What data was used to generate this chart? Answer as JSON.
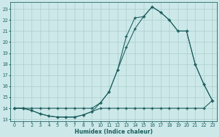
{
  "xlabel": "Humidex (Indice chaleur)",
  "xlim": [
    -0.5,
    23.5
  ],
  "ylim": [
    12.8,
    23.6
  ],
  "yticks": [
    13,
    14,
    15,
    16,
    17,
    18,
    19,
    20,
    21,
    22,
    23
  ],
  "xticks": [
    0,
    1,
    2,
    3,
    4,
    5,
    6,
    7,
    8,
    9,
    10,
    11,
    12,
    13,
    14,
    15,
    16,
    17,
    18,
    19,
    20,
    21,
    22,
    23
  ],
  "bg_color": "#cce8e8",
  "grid_color": "#aacccc",
  "line_color": "#1a5c5c",
  "line1_x": [
    0,
    1,
    2,
    3,
    4,
    5,
    6,
    7,
    8,
    9,
    10,
    11,
    12,
    13,
    14,
    15,
    16,
    17,
    18,
    19,
    20,
    21,
    22,
    23
  ],
  "line1_y": [
    14.0,
    14.0,
    13.8,
    13.5,
    13.3,
    13.2,
    13.2,
    13.2,
    13.4,
    13.7,
    14.0,
    14.0,
    14.0,
    14.0,
    14.0,
    14.0,
    14.0,
    14.0,
    14.0,
    14.0,
    14.0,
    14.0,
    14.0,
    14.7
  ],
  "line2_x": [
    0,
    1,
    2,
    3,
    4,
    5,
    6,
    7,
    8,
    9,
    10,
    11,
    12,
    13,
    14,
    15,
    16,
    17,
    18,
    19,
    20,
    21,
    22,
    23
  ],
  "line2_y": [
    14.0,
    14.0,
    14.0,
    14.0,
    14.0,
    14.0,
    14.0,
    14.0,
    14.0,
    14.0,
    14.5,
    15.5,
    17.5,
    19.5,
    21.2,
    22.3,
    23.2,
    22.7,
    22.0,
    21.0,
    21.0,
    18.0,
    16.2,
    14.7
  ],
  "line3_x": [
    0,
    1,
    2,
    3,
    4,
    5,
    6,
    7,
    8,
    9,
    10,
    11,
    12,
    13,
    14,
    15,
    16,
    17,
    18,
    19,
    20,
    21,
    22,
    23
  ],
  "line3_y": [
    14.0,
    14.0,
    13.8,
    13.5,
    13.3,
    13.2,
    13.2,
    13.2,
    13.4,
    13.7,
    14.5,
    15.5,
    17.5,
    20.5,
    22.2,
    22.3,
    23.2,
    22.7,
    22.0,
    21.0,
    21.0,
    18.0,
    16.2,
    14.7
  ]
}
